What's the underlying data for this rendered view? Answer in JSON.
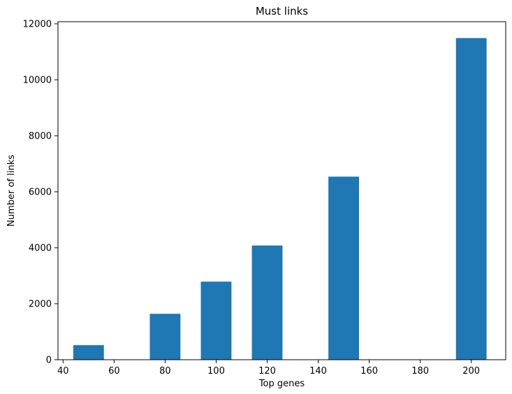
{
  "chart_data": {
    "type": "bar",
    "title": "Must links",
    "xlabel": "Top genes",
    "ylabel": "Number of links",
    "x": [
      50,
      80,
      100,
      120,
      150,
      200
    ],
    "values": [
      520,
      1640,
      2790,
      4080,
      6540,
      11490
    ],
    "bar_width": 12,
    "xlim": [
      38,
      213.5
    ],
    "ylim": [
      0,
      12075
    ],
    "xticks": [
      40,
      60,
      80,
      100,
      120,
      140,
      160,
      180,
      200
    ],
    "yticks": [
      0,
      2000,
      4000,
      6000,
      8000,
      10000,
      12000
    ],
    "grid": false,
    "legend": "none",
    "bar_color": "#1f77b4"
  }
}
